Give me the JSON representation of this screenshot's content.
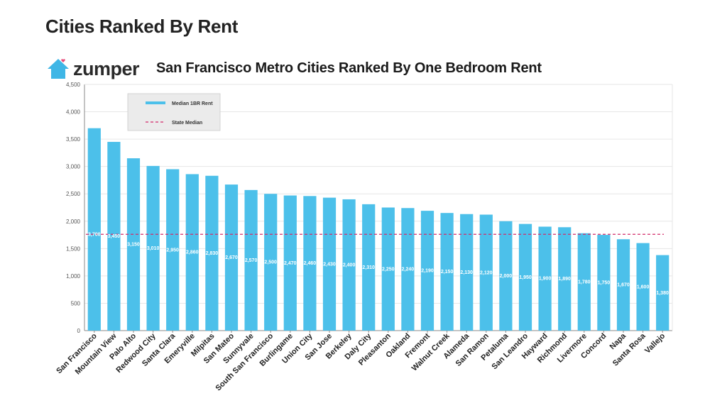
{
  "page": {
    "heading": "Cities Ranked By Rent"
  },
  "logo": {
    "text": "zumper",
    "brand_color": "#3fb6e6",
    "accent_color": "#e84b7a"
  },
  "colors": {
    "bar": "#4cc0ea",
    "median_line": "#d22b6a",
    "grid": "#e6e6e6",
    "axis": "#888888"
  },
  "chart_data": {
    "type": "bar",
    "title": "San Francisco Metro Cities Ranked By One Bedroom Rent",
    "xlabel": "",
    "ylabel": "",
    "ylim": [
      0,
      4500
    ],
    "yticks": [
      0,
      500,
      1000,
      1500,
      2000,
      2500,
      3000,
      3500,
      4000,
      4500
    ],
    "ytick_labels": [
      "0",
      "500",
      "1,000",
      "1,500",
      "2,000",
      "2,500",
      "3,000",
      "3,500",
      "4,000",
      "4,500"
    ],
    "grid": true,
    "legend_position": "top-left",
    "categories": [
      "San Francisco",
      "Mountain View",
      "Palo Alto",
      "Redwood City",
      "Santa Clara",
      "Emeryville",
      "Milpitas",
      "San Mateo",
      "Sunnyvale",
      "South San Francisco",
      "Burlingame",
      "Union City",
      "San Jose",
      "Berkeley",
      "Daly City",
      "Pleasanton",
      "Oakland",
      "Fremont",
      "Walnut Creek",
      "Alameda",
      "San Ramon",
      "Petaluma",
      "San Leandro",
      "Hayward",
      "Richmond",
      "Livermore",
      "Concord",
      "Napa",
      "Santa Rosa",
      "Vallejo"
    ],
    "series": [
      {
        "name": "Median 1BR Rent",
        "type": "bar",
        "values": [
          3700,
          3450,
          3150,
          3010,
          2950,
          2860,
          2830,
          2670,
          2570,
          2500,
          2470,
          2460,
          2430,
          2400,
          2310,
          2250,
          2240,
          2190,
          2150,
          2130,
          2120,
          2000,
          1950,
          1900,
          1890,
          1780,
          1750,
          1670,
          1600,
          1380
        ],
        "labels": [
          "3,700",
          "3,450",
          "3,150",
          "3,010",
          "2,950",
          "2,860",
          "2,830",
          "2,670",
          "2,570",
          "2,500",
          "2,470",
          "2,460",
          "2,430",
          "2,400",
          "2,310",
          "2,250",
          "2,240",
          "2,190",
          "2,150",
          "2,130",
          "2,120",
          "2,000",
          "1,950",
          "1,900",
          "1,890",
          "1,780",
          "1,750",
          "1,670",
          "1,600",
          "1,380"
        ]
      },
      {
        "name": "State Median",
        "type": "line",
        "value": 1760
      }
    ]
  }
}
